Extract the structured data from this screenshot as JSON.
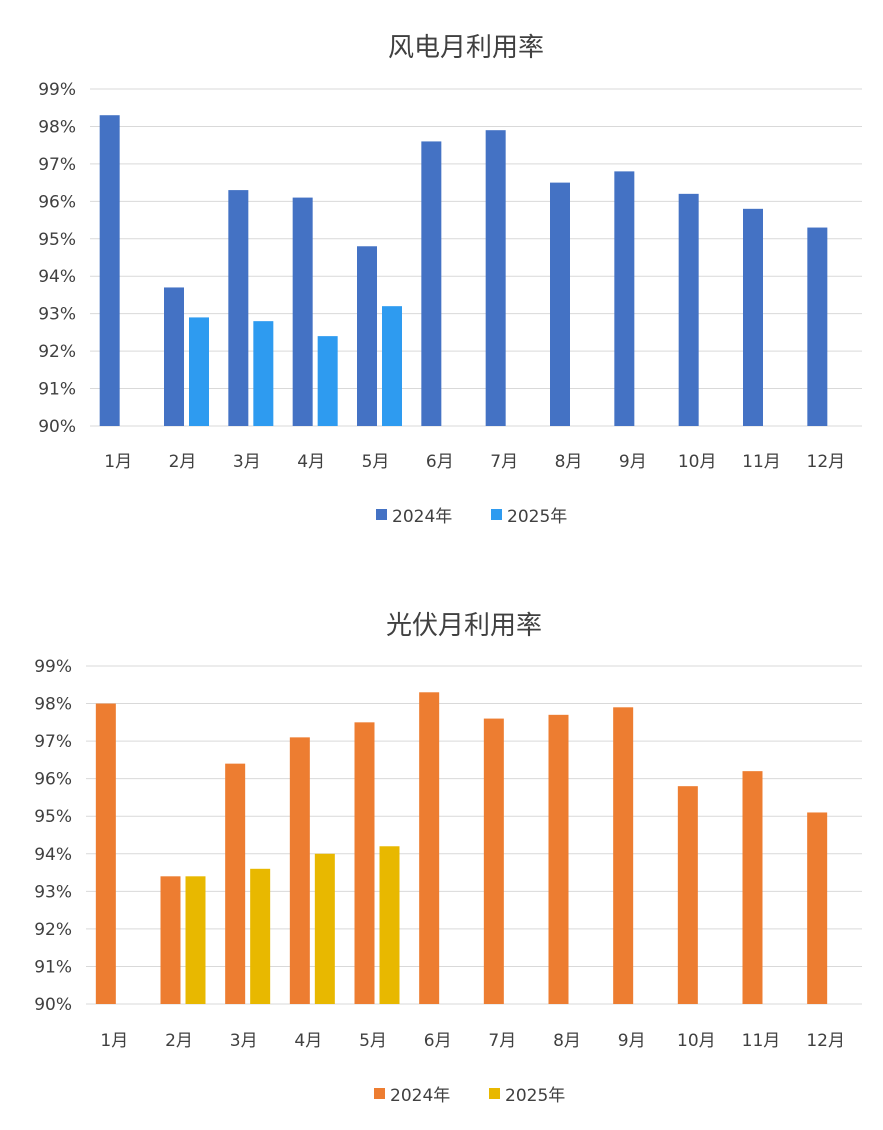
{
  "chart_data": [
    {
      "type": "bar",
      "title": "风电月利用率",
      "categories": [
        "1月",
        "2月",
        "3月",
        "4月",
        "5月",
        "6月",
        "7月",
        "8月",
        "9月",
        "10月",
        "11月",
        "12月"
      ],
      "series": [
        {
          "name": "2024年",
          "color": "#4472c4",
          "values": [
            98.3,
            93.7,
            96.3,
            96.1,
            94.8,
            97.6,
            97.9,
            96.5,
            96.8,
            96.2,
            95.8,
            95.3
          ]
        },
        {
          "name": "2025年",
          "color": "#2e9bf0",
          "values": [
            null,
            92.9,
            92.8,
            92.4,
            93.2,
            null,
            null,
            null,
            null,
            null,
            null,
            null
          ]
        }
      ],
      "ylim": [
        90,
        99
      ],
      "yticks": [
        "90%",
        "91%",
        "92%",
        "93%",
        "94%",
        "95%",
        "96%",
        "97%",
        "98%",
        "99%"
      ],
      "grid": true,
      "legend": "bottom"
    },
    {
      "type": "bar",
      "title": "光伏月利用率",
      "categories": [
        "1月",
        "2月",
        "3月",
        "4月",
        "5月",
        "6月",
        "7月",
        "8月",
        "9月",
        "10月",
        "11月",
        "12月"
      ],
      "series": [
        {
          "name": "2024年",
          "color": "#ed7d31",
          "values": [
            98.0,
            93.4,
            96.4,
            97.1,
            97.5,
            98.3,
            97.6,
            97.7,
            97.9,
            95.8,
            96.2,
            95.1
          ]
        },
        {
          "name": "2025年",
          "color": "#e8b800",
          "values": [
            null,
            93.4,
            93.6,
            94.0,
            94.2,
            null,
            null,
            null,
            null,
            null,
            null,
            null
          ]
        }
      ],
      "ylim": [
        90,
        99
      ],
      "yticks": [
        "90%",
        "91%",
        "92%",
        "93%",
        "94%",
        "95%",
        "96%",
        "97%",
        "98%",
        "99%"
      ],
      "grid": true,
      "legend": "bottom"
    }
  ]
}
